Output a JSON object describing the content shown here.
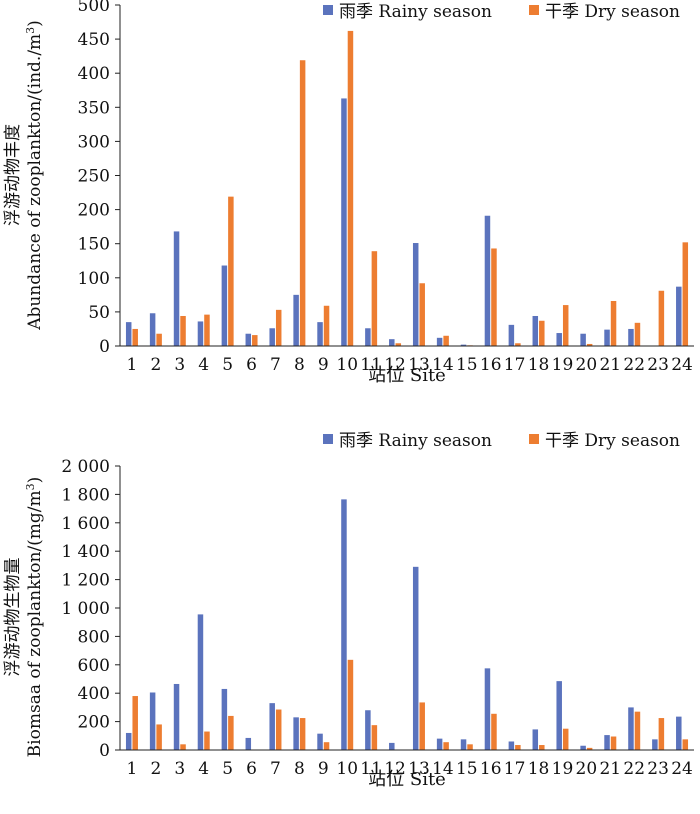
{
  "colors": {
    "rainy": "#5B73BD",
    "dry": "#ED7D31"
  },
  "chart_data": [
    {
      "type": "bar",
      "title": "",
      "categories": [
        "1",
        "2",
        "3",
        "4",
        "5",
        "6",
        "7",
        "8",
        "9",
        "10",
        "11",
        "12",
        "13",
        "14",
        "15",
        "16",
        "17",
        "18",
        "19",
        "20",
        "21",
        "22",
        "23",
        "24"
      ],
      "series": [
        {
          "name": "雨季 Rainy season",
          "values": [
            35,
            48,
            168,
            36,
            118,
            18,
            26,
            75,
            35,
            363,
            26,
            10,
            151,
            12,
            2,
            191,
            31,
            44,
            19,
            18,
            24,
            25,
            0,
            87
          ]
        },
        {
          "name": "干季 Dry season",
          "values": [
            25,
            18,
            44,
            46,
            219,
            16,
            53,
            419,
            59,
            462,
            139,
            4,
            92,
            15,
            1,
            143,
            4,
            37,
            60,
            3,
            66,
            34,
            81,
            152
          ]
        }
      ],
      "xlabel": "站位 Site",
      "ylabel": "浮游动物丰度",
      "ylabel2": "Abundance of zooplankton/(ind./m",
      "ylabel_sup": "3",
      "ylabel_end": ")",
      "ylim": [
        0,
        500
      ],
      "yticks": [
        0,
        50,
        100,
        150,
        200,
        250,
        300,
        350,
        400,
        450,
        500
      ],
      "ytick_labels": [
        "0",
        "50",
        "100",
        "150",
        "200",
        "250",
        "300",
        "350",
        "400",
        "450",
        "500"
      ],
      "legend": "top-right",
      "grid": false
    },
    {
      "type": "bar",
      "title": "",
      "categories": [
        "1",
        "2",
        "3",
        "4",
        "5",
        "6",
        "7",
        "8",
        "9",
        "10",
        "11",
        "12",
        "13",
        "14",
        "15",
        "16",
        "17",
        "18",
        "19",
        "20",
        "21",
        "22",
        "23",
        "24"
      ],
      "series": [
        {
          "name": "雨季 Rainy season",
          "values": [
            120,
            405,
            465,
            955,
            430,
            85,
            330,
            230,
            115,
            1765,
            280,
            50,
            1290,
            80,
            75,
            575,
            60,
            145,
            485,
            30,
            105,
            300,
            75,
            235
          ]
        },
        {
          "name": "干季 Dry season",
          "values": [
            380,
            180,
            40,
            130,
            240,
            0,
            285,
            225,
            55,
            635,
            175,
            0,
            335,
            55,
            40,
            255,
            35,
            35,
            150,
            15,
            95,
            270,
            225,
            75
          ]
        }
      ],
      "xlabel": "站位 Site",
      "ylabel": "浮游动物生物量",
      "ylabel2": "Biomsaa of zooplankton/(mg/m",
      "ylabel_sup": "3",
      "ylabel_end": ")",
      "ylim": [
        0,
        2000
      ],
      "yticks": [
        0,
        200,
        400,
        600,
        800,
        1000,
        1200,
        1400,
        1600,
        1800,
        2000
      ],
      "ytick_labels": [
        "0",
        "200",
        "400",
        "600",
        "800",
        "1 000",
        "1 200",
        "1 400",
        "1 600",
        "1 800",
        "2 000"
      ],
      "legend": "top-right",
      "grid": false
    }
  ]
}
